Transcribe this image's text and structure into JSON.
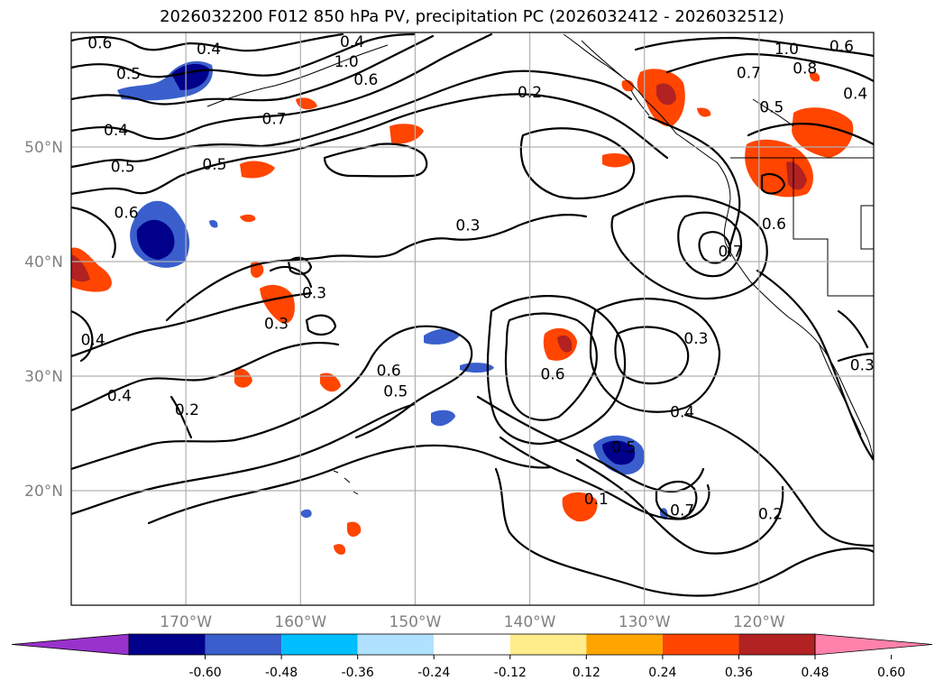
{
  "title": "2026032200 F012 850 hPa PV, precipitation PC (2026032412 - 2026032512)",
  "map": {
    "lon_range": [
      -180,
      -110
    ],
    "lat_range": [
      10,
      60
    ],
    "projection": "PlateCarree",
    "grid": true,
    "lon_ticks": [
      {
        "value": -170,
        "label": "170°W"
      },
      {
        "value": -160,
        "label": "160°W"
      },
      {
        "value": -150,
        "label": "150°W"
      },
      {
        "value": -140,
        "label": "140°W"
      },
      {
        "value": -130,
        "label": "130°W"
      },
      {
        "value": -120,
        "label": "120°W"
      }
    ],
    "lat_ticks": [
      {
        "value": 20,
        "label": "20°N"
      },
      {
        "value": 30,
        "label": "30°N"
      },
      {
        "value": 40,
        "label": "40°N"
      },
      {
        "value": 50,
        "label": "50°N"
      }
    ],
    "contour_labels": [
      {
        "text": "0.6",
        "lon": -177.5,
        "lat": 59.1
      },
      {
        "text": "0.4",
        "lon": -168.0,
        "lat": 58.6
      },
      {
        "text": "0.5",
        "lon": -175.0,
        "lat": 56.4
      },
      {
        "text": "0.4",
        "lon": -176.1,
        "lat": 51.5
      },
      {
        "text": "0.5",
        "lon": -175.5,
        "lat": 48.3
      },
      {
        "text": "0.5",
        "lon": -167.5,
        "lat": 48.5
      },
      {
        "text": "0.6",
        "lon": -175.2,
        "lat": 44.3
      },
      {
        "text": "0.7",
        "lon": -162.3,
        "lat": 52.5
      },
      {
        "text": "0.4",
        "lon": -155.5,
        "lat": 59.2
      },
      {
        "text": "1.0",
        "lon": -156.0,
        "lat": 57.5
      },
      {
        "text": "0.6",
        "lon": -154.3,
        "lat": 55.9
      },
      {
        "text": "0.2",
        "lon": -140.0,
        "lat": 54.8
      },
      {
        "text": "1.0",
        "lon": -117.6,
        "lat": 58.6
      },
      {
        "text": "0.8",
        "lon": -116.0,
        "lat": 56.9
      },
      {
        "text": "0.6",
        "lon": -112.8,
        "lat": 58.8
      },
      {
        "text": "0.4",
        "lon": -111.6,
        "lat": 54.7
      },
      {
        "text": "0.7",
        "lon": -120.9,
        "lat": 56.5
      },
      {
        "text": "0.5",
        "lon": -118.9,
        "lat": 53.5
      },
      {
        "text": "0.3",
        "lon": -145.4,
        "lat": 43.2
      },
      {
        "text": "0.6",
        "lon": -118.7,
        "lat": 43.3
      },
      {
        "text": "0.7",
        "lon": -122.5,
        "lat": 40.9
      },
      {
        "text": "0.3",
        "lon": -158.8,
        "lat": 37.3
      },
      {
        "text": "0.3",
        "lon": -162.1,
        "lat": 34.6
      },
      {
        "text": "0.4",
        "lon": -178.1,
        "lat": 33.2
      },
      {
        "text": "0.4",
        "lon": -175.8,
        "lat": 28.3
      },
      {
        "text": "0.2",
        "lon": -169.9,
        "lat": 27.1
      },
      {
        "text": "0.6",
        "lon": -152.3,
        "lat": 30.5
      },
      {
        "text": "0.5",
        "lon": -151.7,
        "lat": 28.7
      },
      {
        "text": "0.6",
        "lon": -138.0,
        "lat": 30.2
      },
      {
        "text": "0.3",
        "lon": -125.5,
        "lat": 33.3
      },
      {
        "text": "0.4",
        "lon": -126.7,
        "lat": 26.9
      },
      {
        "text": "0.3",
        "lon": -111.0,
        "lat": 31.0
      },
      {
        "text": "0.5",
        "lon": -131.8,
        "lat": 23.8
      },
      {
        "text": "0.1",
        "lon": -134.2,
        "lat": 19.3
      },
      {
        "text": "0.7",
        "lon": -126.7,
        "lat": 18.3
      },
      {
        "text": "0.2",
        "lon": -119.0,
        "lat": 18.0
      }
    ]
  },
  "colorbar": {
    "levels": [
      "-0.60",
      "-0.48",
      "-0.36",
      "-0.24",
      "-0.12",
      "0.12",
      "0.24",
      "0.36",
      "0.48",
      "0.60"
    ],
    "colors": [
      "#9932cc",
      "#00008b",
      "#3a5fcd",
      "#00bfff",
      "#b0e2ff",
      "#ffffff",
      "#ffec8b",
      "#ffa500",
      "#ff4500",
      "#b22222",
      "#ff82ab"
    ],
    "extend": "both"
  }
}
